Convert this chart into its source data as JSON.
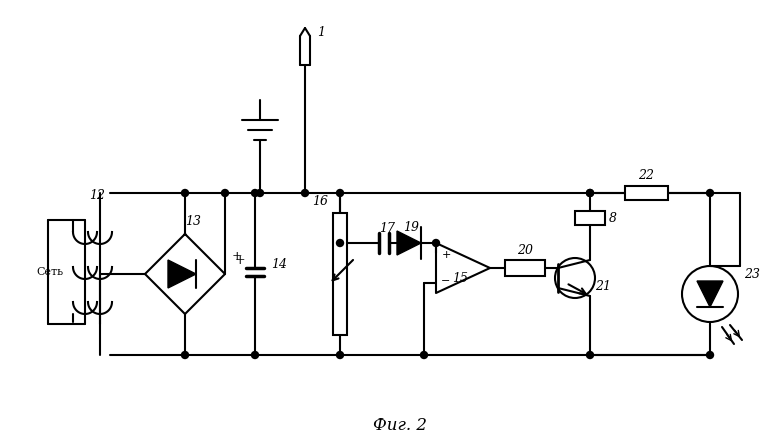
{
  "title": "Фиг. 2",
  "line_color": "#000000",
  "bg_color": "#ffffff",
  "lw": 1.5,
  "fig_width": 7.8,
  "fig_height": 4.44
}
